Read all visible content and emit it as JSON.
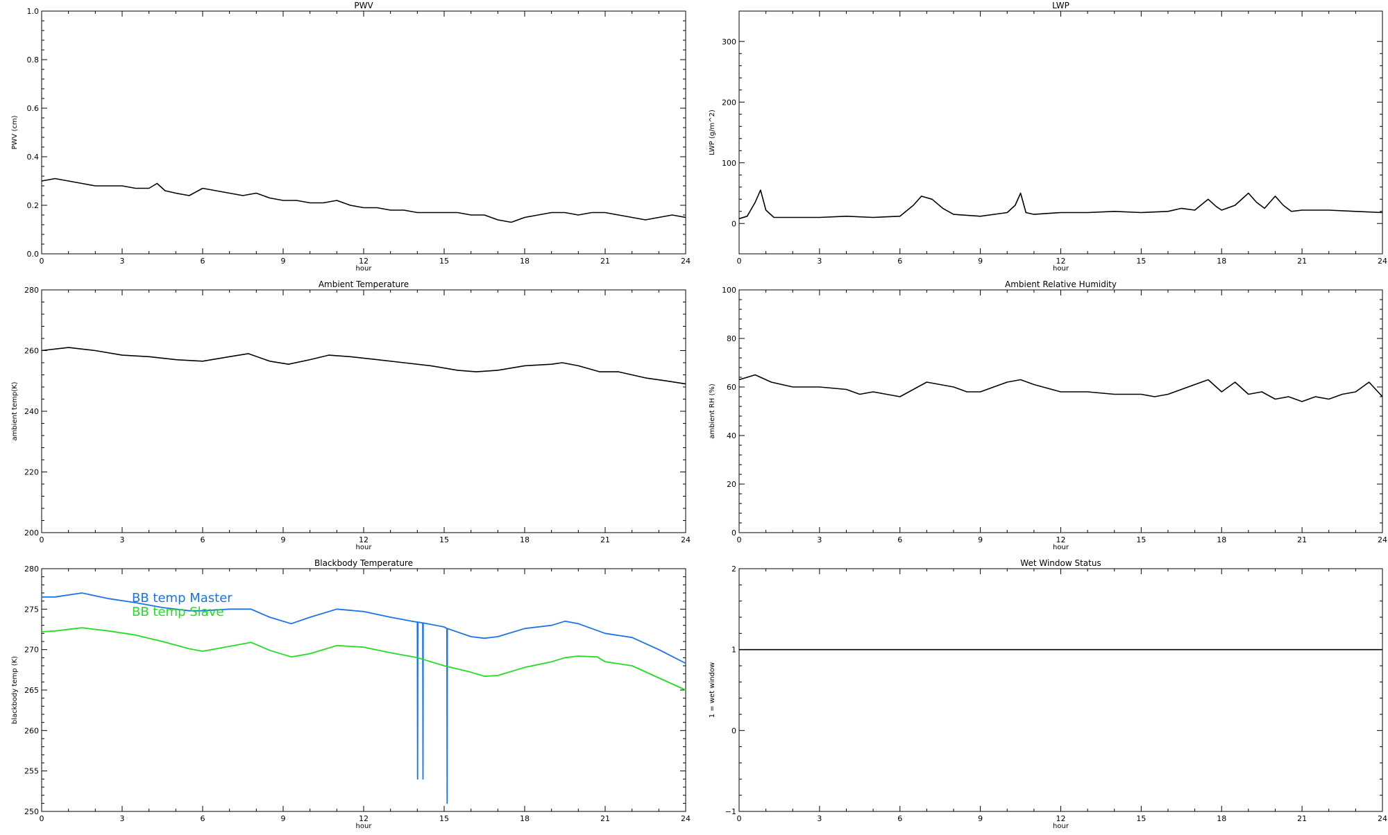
{
  "chart_data": [
    {
      "type": "line",
      "title": "PWV",
      "xlabel": "hour",
      "ylabel": "PWV (cm)",
      "xlim": [
        0,
        24
      ],
      "ylim": [
        0.0,
        1.0
      ],
      "xticks": [
        "0",
        "3",
        "6",
        "9",
        "12",
        "15",
        "18",
        "21",
        "24"
      ],
      "yticks": [
        "0.0",
        "0.2",
        "0.4",
        "0.6",
        "0.8",
        "1.0"
      ],
      "series": [
        {
          "color": "#000000",
          "x": [
            0,
            0.5,
            1,
            1.5,
            2,
            2.5,
            3,
            3.5,
            4,
            4.3,
            4.6,
            5,
            5.5,
            6,
            6.5,
            7,
            7.5,
            8,
            8.5,
            9,
            9.5,
            10,
            10.5,
            11,
            11.5,
            12,
            12.5,
            13,
            13.5,
            14,
            14.5,
            15,
            15.5,
            16,
            16.5,
            17,
            17.5,
            18,
            18.5,
            19,
            19.5,
            20,
            20.5,
            21,
            21.5,
            22,
            22.5,
            23,
            23.5,
            24
          ],
          "values": [
            0.3,
            0.31,
            0.3,
            0.29,
            0.28,
            0.28,
            0.28,
            0.27,
            0.27,
            0.29,
            0.26,
            0.25,
            0.24,
            0.27,
            0.26,
            0.25,
            0.24,
            0.25,
            0.23,
            0.22,
            0.22,
            0.21,
            0.21,
            0.22,
            0.2,
            0.19,
            0.19,
            0.18,
            0.18,
            0.17,
            0.17,
            0.17,
            0.17,
            0.16,
            0.16,
            0.14,
            0.13,
            0.15,
            0.16,
            0.17,
            0.17,
            0.16,
            0.17,
            0.17,
            0.16,
            0.15,
            0.14,
            0.15,
            0.16,
            0.15
          ]
        }
      ]
    },
    {
      "type": "line",
      "title": "LWP",
      "xlabel": "hour",
      "ylabel": "LWP (g/m^2)",
      "xlim": [
        0,
        24
      ],
      "ylim": [
        -50,
        350
      ],
      "xticks": [
        "0",
        "3",
        "6",
        "9",
        "12",
        "15",
        "18",
        "21",
        "24"
      ],
      "yticks": [
        "0",
        "100",
        "200",
        "300"
      ],
      "series": [
        {
          "color": "#000000",
          "x": [
            0,
            0.3,
            0.6,
            0.8,
            1.0,
            1.3,
            2,
            3,
            4,
            5,
            6,
            6.5,
            6.8,
            7.2,
            7.6,
            8,
            9,
            10,
            10.3,
            10.5,
            10.7,
            11,
            12,
            13,
            14,
            15,
            16,
            16.5,
            17,
            17.5,
            17.8,
            18,
            18.5,
            19,
            19.3,
            19.6,
            20,
            20.3,
            20.6,
            21,
            22,
            23,
            24
          ],
          "values": [
            8,
            12,
            35,
            55,
            22,
            10,
            10,
            10,
            12,
            10,
            12,
            30,
            45,
            40,
            25,
            15,
            12,
            18,
            30,
            50,
            18,
            15,
            18,
            18,
            20,
            18,
            20,
            25,
            22,
            40,
            28,
            22,
            30,
            50,
            35,
            25,
            45,
            30,
            20,
            22,
            22,
            20,
            18
          ]
        }
      ]
    },
    {
      "type": "line",
      "title": "Ambient Temperature",
      "xlabel": "hour",
      "ylabel": "ambient temp(K)",
      "xlim": [
        0,
        24
      ],
      "ylim": [
        200,
        280
      ],
      "xticks": [
        "0",
        "3",
        "6",
        "9",
        "12",
        "15",
        "18",
        "21",
        "24"
      ],
      "yticks": [
        "200",
        "220",
        "240",
        "260",
        "280"
      ],
      "series": [
        {
          "color": "#000000",
          "x": [
            0,
            1,
            2,
            3,
            4,
            5,
            6,
            7,
            7.7,
            8.5,
            9.2,
            10,
            10.7,
            11.5,
            12.5,
            13.5,
            14.5,
            15.5,
            16.2,
            17,
            18,
            19,
            19.4,
            20,
            20.8,
            21.5,
            22.5,
            23.3,
            24
          ],
          "values": [
            260,
            261,
            260,
            258.5,
            258,
            257,
            256.5,
            258,
            259,
            256.5,
            255.5,
            257,
            258.5,
            258,
            257,
            256,
            255,
            253.5,
            253,
            253.5,
            255,
            255.5,
            256,
            255,
            253,
            253,
            251,
            250,
            249
          ]
        }
      ]
    },
    {
      "type": "line",
      "title": "Ambient Relative Humidity",
      "xlabel": "hour",
      "ylabel": "ambient RH (%)",
      "xlim": [
        0,
        24
      ],
      "ylim": [
        0,
        100
      ],
      "xticks": [
        "0",
        "3",
        "6",
        "9",
        "12",
        "15",
        "18",
        "21",
        "24"
      ],
      "yticks": [
        "0",
        "20",
        "40",
        "60",
        "80",
        "100"
      ],
      "series": [
        {
          "color": "#000000",
          "x": [
            0,
            0.6,
            1.2,
            2,
            3,
            4,
            4.5,
            5,
            5.5,
            6,
            6.5,
            7,
            7.5,
            8,
            8.5,
            9,
            9.5,
            10,
            10.5,
            11,
            12,
            13,
            14,
            15,
            15.5,
            16,
            16.5,
            17,
            17.5,
            18,
            18.5,
            19,
            19.5,
            20,
            20.5,
            21,
            21.5,
            22,
            22.5,
            23,
            23.5,
            24
          ],
          "values": [
            63,
            65,
            62,
            60,
            60,
            59,
            57,
            58,
            57,
            56,
            59,
            62,
            61,
            60,
            58,
            58,
            60,
            62,
            63,
            61,
            58,
            58,
            57,
            57,
            56,
            57,
            59,
            61,
            63,
            58,
            62,
            57,
            58,
            55,
            56,
            54,
            56,
            55,
            57,
            58,
            62,
            56
          ]
        }
      ]
    },
    {
      "type": "line",
      "title": "Blackbody Temperature",
      "xlabel": "hour",
      "ylabel": "blackbody temp (K)",
      "xlim": [
        0,
        24
      ],
      "ylim": [
        250,
        280
      ],
      "xticks": [
        "0",
        "3",
        "6",
        "9",
        "12",
        "15",
        "18",
        "21",
        "24"
      ],
      "yticks": [
        "250",
        "255",
        "260",
        "265",
        "270",
        "275",
        "280"
      ],
      "series": [
        {
          "name": "BB temp Master",
          "color": "#1a73e8",
          "x": [
            0,
            0.5,
            1.5,
            2.5,
            3.5,
            4.5,
            5.5,
            6,
            7,
            7.8,
            8.5,
            9.3,
            10,
            11,
            12,
            13,
            13.8,
            14,
            14.01,
            14.02,
            14.2,
            14.21,
            14.22,
            15,
            15.1,
            15.11,
            15.12,
            16,
            16.5,
            17,
            18,
            19,
            19.5,
            20,
            21,
            22,
            23,
            24
          ],
          "values": [
            276.5,
            276.5,
            277,
            276.3,
            275.8,
            275.2,
            274.8,
            274.8,
            275,
            275,
            274,
            273.2,
            274,
            275,
            274.7,
            274,
            273.5,
            273.4,
            254.0,
            273.4,
            273.3,
            254.0,
            273.3,
            272.8,
            272.6,
            251.0,
            272.6,
            271.6,
            271.4,
            271.6,
            272.6,
            273,
            273.5,
            273.2,
            272,
            271.5,
            270,
            268.3
          ]
        },
        {
          "name": "BB temp Slave",
          "color": "#22dd22",
          "x": [
            0,
            0.5,
            1.5,
            2.5,
            3.5,
            4.5,
            5.5,
            6,
            7,
            7.8,
            8.5,
            9.3,
            10,
            11,
            12,
            13,
            14,
            15,
            16,
            16.5,
            17,
            18,
            19,
            19.5,
            20,
            20.7,
            21,
            22,
            23,
            24
          ],
          "values": [
            272.2,
            272.3,
            272.7,
            272.3,
            271.8,
            271,
            270.1,
            269.8,
            270.4,
            270.9,
            269.9,
            269.1,
            269.5,
            270.5,
            270.3,
            269.6,
            269,
            268,
            267.2,
            266.7,
            266.8,
            267.8,
            268.5,
            269,
            269.2,
            269.1,
            268.5,
            268,
            266.5,
            265
          ]
        }
      ]
    },
    {
      "type": "line",
      "title": "Wet Window Status",
      "xlabel": "hour",
      "ylabel": "1 = wet window",
      "xlim": [
        0,
        24
      ],
      "ylim": [
        -1,
        2
      ],
      "xticks": [
        "0",
        "3",
        "6",
        "9",
        "12",
        "15",
        "18",
        "21",
        "24"
      ],
      "yticks": [
        "−1",
        "0",
        "1",
        "2"
      ],
      "series": [
        {
          "color": "#000000",
          "x": [
            0,
            24
          ],
          "values": [
            1,
            1
          ]
        }
      ]
    }
  ]
}
